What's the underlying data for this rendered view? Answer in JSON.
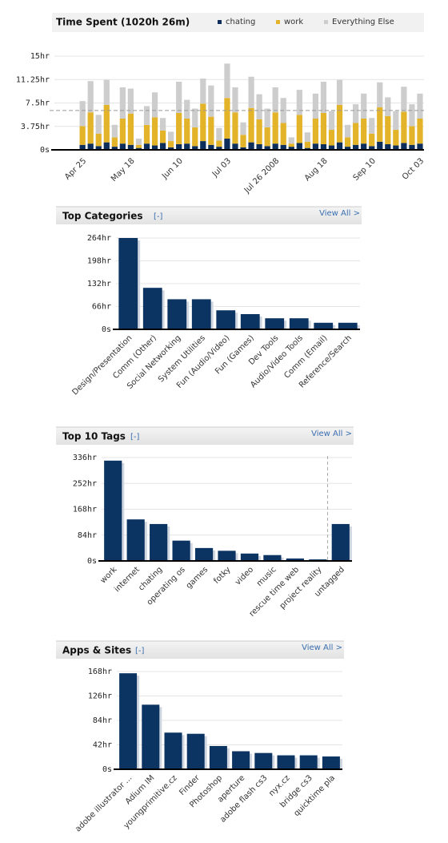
{
  "chart_data": [
    {
      "type": "stacked_bar",
      "title": "Time Spent (1020h 26m)",
      "categories": [
        null,
        null,
        null,
        "Apr 25",
        null,
        null,
        null,
        null,
        null,
        "May 18",
        null,
        null,
        null,
        null,
        null,
        "Jun 10",
        null,
        null,
        null,
        null,
        null,
        "Jul 03",
        null,
        null,
        null,
        null,
        null,
        "Jul 26 2008",
        null,
        null,
        null,
        null,
        null,
        "Aug 18",
        null,
        null,
        null,
        null,
        null,
        "Sep 10",
        null,
        null,
        null,
        null,
        null,
        "Oct 03"
      ],
      "series": [
        {
          "name": "chating",
          "color": "#0d2d5a",
          "values": [
            0,
            0,
            0,
            0.8,
            1,
            0.6,
            1.2,
            0.5,
            1,
            0.8,
            0.3,
            1,
            0.7,
            1.1,
            0.4,
            0.9,
            1,
            0.6,
            1.4,
            0.8,
            0.5,
            1.8,
            1,
            0.4,
            1.2,
            0.9,
            0.6,
            1,
            0.8,
            0.5,
            1.1,
            0.3,
            1,
            0.9,
            0.7,
            1.2,
            0.5,
            0.8,
            1,
            0.6,
            1.3,
            0.9,
            0.7,
            1.1,
            0.8,
            1
          ]
        },
        {
          "name": "work",
          "color": "#e3b429",
          "values": [
            0,
            0,
            0,
            3,
            5,
            2,
            6,
            1.5,
            4,
            5,
            0.5,
            3,
            4.5,
            2,
            1,
            5,
            4,
            3,
            6,
            4.5,
            1,
            6.5,
            5,
            2,
            5.5,
            4,
            3,
            5,
            3.5,
            0.5,
            4.5,
            1,
            4,
            5,
            2.5,
            6,
            1.5,
            3.5,
            4,
            2,
            5.5,
            4.5,
            2.5,
            5,
            3,
            4
          ]
        },
        {
          "name": "Everything Else",
          "color": "#cdcdcd",
          "values": [
            0,
            0,
            0,
            4,
            5,
            3,
            4,
            2,
            5,
            4,
            1,
            3,
            4,
            2,
            1.5,
            5,
            3,
            3,
            4,
            5,
            2,
            5.5,
            4,
            2,
            5,
            4,
            3,
            4,
            4,
            1,
            4,
            1.5,
            4,
            5,
            3,
            4,
            2,
            3,
            4,
            2.5,
            4,
            3,
            3,
            4,
            3.5,
            4
          ]
        }
      ],
      "reference_line": 6.3,
      "ylim": [
        0,
        15
      ],
      "yticks": [
        {
          "value": 0,
          "label": "0s"
        },
        {
          "value": 3.75,
          "label": "3.75hr"
        },
        {
          "value": 7.5,
          "label": "7.5hr"
        },
        {
          "value": 11.25,
          "label": "11.25hr"
        },
        {
          "value": 15,
          "label": "15hr"
        }
      ],
      "grid": true
    },
    {
      "type": "bar",
      "title": "Top Categories",
      "collapse_label": "[-]",
      "link_label": "View All >",
      "color": "#0c3463",
      "categories": [
        "Design/Presentation",
        "Comm (Other)",
        "Social Networking",
        "System Utilities",
        "Fun (Audio/Video)",
        "Fun (Games)",
        "Dev Tools",
        "Audio/Video Tools",
        "Comm (Email)",
        "Reference/Search"
      ],
      "values": [
        264,
        120,
        87,
        87,
        55,
        44,
        32,
        32,
        19,
        19
      ],
      "ylim": [
        0,
        264
      ],
      "yticks": [
        {
          "value": 0,
          "label": "0s"
        },
        {
          "value": 66,
          "label": "66hr"
        },
        {
          "value": 132,
          "label": "132hr"
        },
        {
          "value": 198,
          "label": "198hr"
        },
        {
          "value": 264,
          "label": "264hr"
        }
      ],
      "grid": true
    },
    {
      "type": "bar",
      "title": "Top 10 Tags",
      "collapse_label": "[-]",
      "link_label": "View All >",
      "color": "#0c3463",
      "categories": [
        "work",
        "internet",
        "chating",
        "operating os",
        "games",
        "fotky",
        "video",
        "music",
        "rescue time web",
        "project reality",
        "untagged"
      ],
      "values": [
        326,
        135,
        120,
        66,
        42,
        33,
        24,
        19,
        8,
        5,
        120
      ],
      "ylim": [
        0,
        336
      ],
      "yticks": [
        {
          "value": 0,
          "label": "0s"
        },
        {
          "value": 84,
          "label": "84hr"
        },
        {
          "value": 168,
          "label": "168hr"
        },
        {
          "value": 252,
          "label": "252hr"
        },
        {
          "value": 336,
          "label": "336hr"
        }
      ],
      "grid": true
    },
    {
      "type": "bar",
      "title": "Apps & Sites",
      "collapse_label": "[-]",
      "link_label": "View All >",
      "color": "#0c3463",
      "categories": [
        "adobe illustrator ...",
        "Adium IM",
        "youngprimitive.cz",
        "Finder",
        "Photoshop",
        "aperture",
        "adobe flash cs3",
        "nyx.cz",
        "bridge cs3",
        "quicktime pla"
      ],
      "values": [
        165,
        111,
        63,
        61,
        40,
        31,
        28,
        24,
        24,
        22
      ],
      "ylim": [
        0,
        168
      ],
      "yticks": [
        {
          "value": 0,
          "label": "0s"
        },
        {
          "value": 42,
          "label": "42hr"
        },
        {
          "value": 84,
          "label": "84hr"
        },
        {
          "value": 126,
          "label": "126hr"
        },
        {
          "value": 168,
          "label": "168hr"
        }
      ],
      "grid": true
    }
  ]
}
